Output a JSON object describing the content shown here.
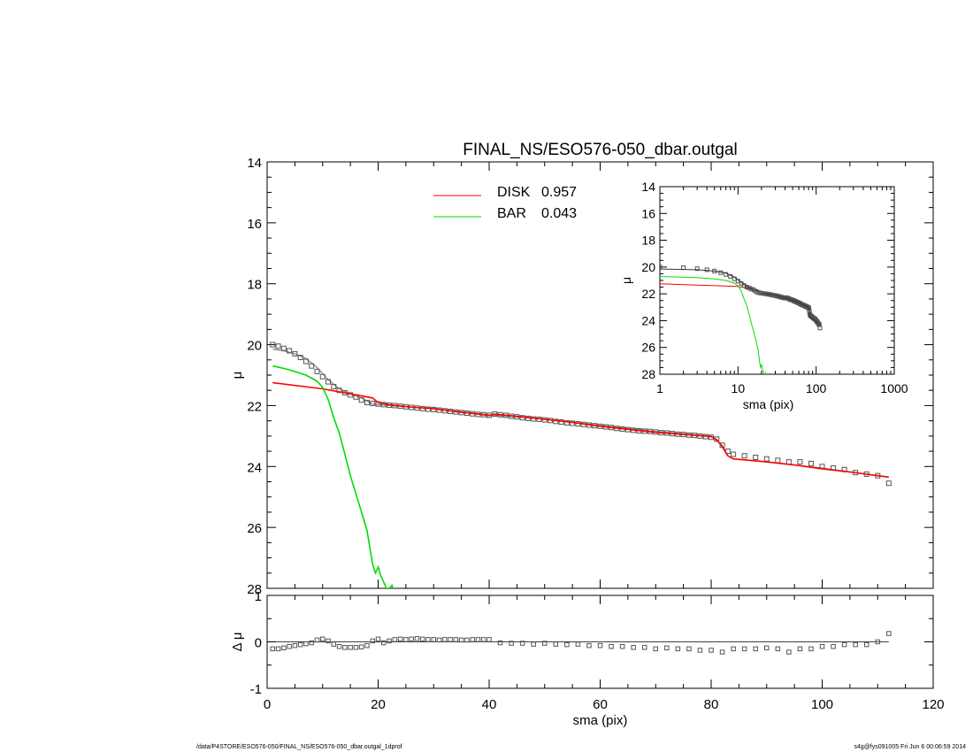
{
  "chart_data": [
    {
      "type": "scatter",
      "title": "FINAL_NS/ESO576-050_dbar.outgal",
      "xlabel": "",
      "ylabel": "μ",
      "xlim": [
        0,
        120
      ],
      "ylim": [
        28,
        14
      ],
      "y_inverted": true,
      "xticks": [
        0,
        20,
        40,
        60,
        80,
        100,
        120
      ],
      "yticks": [
        14,
        16,
        18,
        20,
        22,
        24,
        26,
        28
      ],
      "xtick_labels_shown": false,
      "legend_position": "top-center",
      "legend": [
        {
          "label": "DISK",
          "value": "0.957",
          "color": "#ff0000"
        },
        {
          "label": "BAR",
          "value": "0.043",
          "color": "#00dd00"
        }
      ],
      "series": [
        {
          "name": "data",
          "style": "open-squares",
          "color": "#555555",
          "x": [
            1,
            2,
            3,
            4,
            5,
            6,
            7,
            8,
            9,
            10,
            11,
            12,
            13,
            14,
            15,
            16,
            17,
            18,
            19,
            20,
            21,
            22,
            23,
            24,
            25,
            26,
            27,
            28,
            29,
            30,
            31,
            32,
            33,
            34,
            35,
            36,
            37,
            38,
            39,
            40,
            41,
            42,
            43,
            44,
            45,
            46,
            47,
            48,
            49,
            50,
            51,
            52,
            53,
            54,
            55,
            56,
            57,
            58,
            59,
            60,
            61,
            62,
            63,
            64,
            65,
            66,
            67,
            68,
            69,
            70,
            71,
            72,
            73,
            74,
            75,
            76,
            77,
            78,
            79,
            80,
            81,
            82,
            83,
            84,
            86,
            88,
            90,
            92,
            94,
            96,
            98,
            100,
            102,
            104,
            106,
            108,
            110,
            112
          ],
          "y": [
            20.0,
            20.05,
            20.12,
            20.2,
            20.3,
            20.42,
            20.55,
            20.7,
            20.88,
            21.05,
            21.22,
            21.38,
            21.5,
            21.58,
            21.65,
            21.72,
            21.82,
            21.9,
            21.93,
            21.95,
            21.97,
            21.99,
            22.0,
            22.02,
            22.04,
            22.06,
            22.08,
            22.1,
            22.12,
            22.13,
            22.15,
            22.17,
            22.19,
            22.21,
            22.23,
            22.25,
            22.27,
            22.29,
            22.3,
            22.32,
            22.28,
            22.3,
            22.32,
            22.35,
            22.37,
            22.4,
            22.42,
            22.44,
            22.45,
            22.47,
            22.49,
            22.52,
            22.54,
            22.57,
            22.58,
            22.6,
            22.62,
            22.64,
            22.66,
            22.68,
            22.7,
            22.72,
            22.75,
            22.77,
            22.79,
            22.81,
            22.83,
            22.84,
            22.85,
            22.87,
            22.89,
            22.9,
            22.92,
            22.94,
            22.95,
            22.97,
            22.98,
            23.0,
            23.02,
            23.04,
            23.1,
            23.3,
            23.5,
            23.6,
            23.65,
            23.7,
            23.75,
            23.8,
            23.85,
            23.85,
            23.9,
            24.0,
            24.05,
            24.1,
            24.2,
            24.25,
            24.3,
            24.55
          ]
        },
        {
          "name": "model",
          "style": "line",
          "color": "#808080",
          "x": [
            1,
            3,
            5,
            7,
            9,
            11,
            13,
            15,
            17,
            19,
            20,
            22,
            26,
            30,
            40,
            50,
            60,
            70,
            80,
            82,
            83,
            84,
            90,
            100,
            112
          ],
          "y": [
            20.15,
            20.2,
            20.3,
            20.45,
            20.75,
            21.15,
            21.45,
            21.62,
            21.75,
            21.95,
            21.97,
            22.0,
            22.05,
            22.1,
            22.3,
            22.45,
            22.65,
            22.85,
            23.0,
            23.3,
            23.65,
            23.75,
            23.85,
            24.05,
            24.35
          ]
        },
        {
          "name": "DISK",
          "style": "line",
          "color": "#ff0000",
          "x": [
            1,
            10,
            19,
            20,
            22,
            26,
            30,
            34,
            38,
            40,
            41,
            45,
            50,
            55,
            60,
            65,
            70,
            75,
            80,
            81,
            82,
            83,
            84,
            90,
            95,
            100,
            105,
            112
          ],
          "y": [
            21.25,
            21.45,
            21.75,
            21.9,
            21.97,
            22.05,
            22.1,
            22.2,
            22.28,
            22.33,
            22.28,
            22.35,
            22.45,
            22.55,
            22.68,
            22.78,
            22.88,
            22.95,
            23.02,
            23.12,
            23.35,
            23.65,
            23.75,
            23.85,
            23.95,
            24.08,
            24.18,
            24.35
          ]
        },
        {
          "name": "BAR",
          "style": "line",
          "color": "#00dd00",
          "x": [
            1,
            3,
            5,
            7,
            9,
            10,
            11,
            12,
            13,
            14,
            15,
            16,
            17,
            18,
            19,
            19.5,
            20,
            20.5,
            21,
            21.5,
            22,
            22.5,
            23
          ],
          "y": [
            20.7,
            20.78,
            20.88,
            21.0,
            21.2,
            21.4,
            21.8,
            22.4,
            22.9,
            23.6,
            24.3,
            24.9,
            25.5,
            26.1,
            27.2,
            27.5,
            27.3,
            27.6,
            27.8,
            28.0,
            28.0,
            27.9,
            28.2
          ]
        }
      ]
    },
    {
      "type": "scatter",
      "title": "",
      "xlabel": "sma (pix)",
      "ylabel": "Δ μ",
      "xlim": [
        0,
        120
      ],
      "ylim": [
        -1,
        1
      ],
      "xticks": [
        0,
        20,
        40,
        60,
        80,
        100,
        120
      ],
      "yticks": [
        -1,
        0,
        1
      ],
      "reference_line": 0,
      "series": [
        {
          "name": "residuals",
          "style": "open-squares",
          "color": "#333333",
          "x": [
            1,
            2,
            3,
            4,
            5,
            6,
            7,
            8,
            9,
            10,
            11,
            12,
            13,
            14,
            15,
            16,
            17,
            18,
            19,
            20,
            21,
            22,
            23,
            24,
            25,
            26,
            27,
            28,
            29,
            30,
            31,
            32,
            33,
            34,
            35,
            36,
            37,
            38,
            39,
            40,
            42,
            44,
            46,
            48,
            50,
            52,
            54,
            56,
            58,
            60,
            62,
            64,
            66,
            68,
            70,
            72,
            74,
            76,
            78,
            80,
            82,
            84,
            86,
            88,
            90,
            92,
            94,
            96,
            98,
            100,
            102,
            104,
            106,
            108,
            110,
            112
          ],
          "y": [
            -0.15,
            -0.15,
            -0.13,
            -0.1,
            -0.08,
            -0.06,
            -0.04,
            -0.02,
            0.04,
            0.06,
            0.02,
            -0.05,
            -0.1,
            -0.12,
            -0.12,
            -0.12,
            -0.11,
            -0.08,
            0.02,
            0.06,
            -0.02,
            0.02,
            0.05,
            0.06,
            0.05,
            0.06,
            0.07,
            0.06,
            0.05,
            0.05,
            0.04,
            0.05,
            0.05,
            0.05,
            0.04,
            0.04,
            0.05,
            0.05,
            0.05,
            0.05,
            -0.02,
            -0.03,
            -0.03,
            -0.05,
            -0.03,
            -0.05,
            -0.06,
            -0.05,
            -0.08,
            -0.08,
            -0.1,
            -0.1,
            -0.12,
            -0.12,
            -0.15,
            -0.13,
            -0.15,
            -0.15,
            -0.18,
            -0.18,
            -0.22,
            -0.15,
            -0.15,
            -0.15,
            -0.13,
            -0.15,
            -0.22,
            -0.15,
            -0.15,
            -0.1,
            -0.1,
            -0.06,
            -0.06,
            -0.06,
            0.0,
            0.18
          ]
        }
      ]
    },
    {
      "type": "scatter",
      "title": "",
      "xlabel": "sma (pix)",
      "ylabel": "μ",
      "x_scale": "log",
      "xlim": [
        1,
        1000
      ],
      "ylim": [
        28,
        14
      ],
      "y_inverted": true,
      "xticks": [
        1,
        10,
        100,
        1000
      ],
      "yticks": [
        14,
        16,
        18,
        20,
        22,
        24,
        26,
        28
      ],
      "series": [
        {
          "name": "data",
          "style": "open-squares",
          "color": "#555555",
          "ref": "main-data"
        },
        {
          "name": "DISK",
          "style": "line",
          "color": "#ff0000",
          "ref": "main-disk"
        },
        {
          "name": "BAR",
          "style": "line",
          "color": "#00dd00",
          "ref": "main-bar"
        }
      ]
    }
  ],
  "footer": {
    "left": "/data/P4STORE/ESO576-050/FINAL_NS/ESO576-050_dbar.outgal_1dprof",
    "right": "s4g@fys091005  Fri Jun  6 00:06:59 2014"
  }
}
